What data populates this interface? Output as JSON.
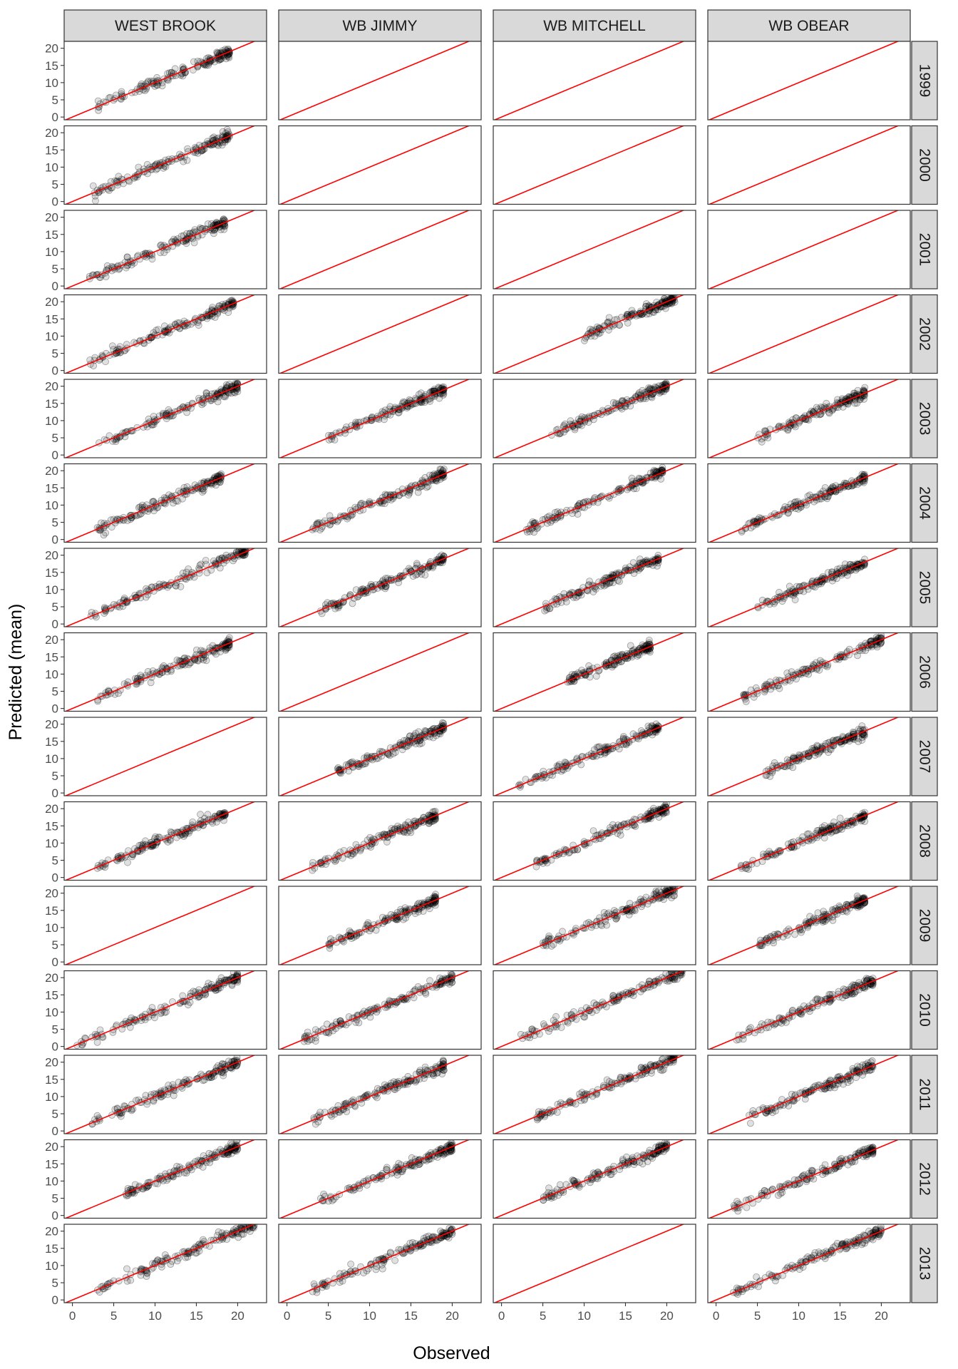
{
  "chart_data": {
    "type": "scatter",
    "xlabel": "Observed",
    "ylabel": "Predicted (mean)",
    "columns": [
      "WEST BROOK",
      "WB JIMMY",
      "WB MITCHELL",
      "WB OBEAR"
    ],
    "rows": [
      "1999",
      "2000",
      "2001",
      "2002",
      "2003",
      "2004",
      "2005",
      "2006",
      "2007",
      "2008",
      "2009",
      "2010",
      "2011",
      "2012",
      "2013"
    ],
    "xlim": [
      -1,
      23.5
    ],
    "ylim": [
      -0.8,
      22
    ],
    "x_ticks": [
      0,
      5,
      10,
      15,
      20
    ],
    "x_tick_labels": [
      "0",
      "5",
      "10",
      "15",
      "20"
    ],
    "y_ticks": [
      0,
      5,
      10,
      15,
      20
    ],
    "y_tick_labels": [
      "0",
      "5",
      "10",
      "15",
      "20"
    ],
    "reference_line": {
      "kind": "identity",
      "slope": 1,
      "intercept": 0,
      "color": "#ff0000"
    },
    "point_color": "#000000",
    "point_alpha": 0.12,
    "grid": false,
    "panels": [
      {
        "column": "WEST BROOK",
        "row": "1999",
        "has_data": true,
        "x_range": [
          3,
          19
        ]
      },
      {
        "column": "WB JIMMY",
        "row": "1999",
        "has_data": false
      },
      {
        "column": "WB MITCHELL",
        "row": "1999",
        "has_data": false
      },
      {
        "column": "WB OBEAR",
        "row": "1999",
        "has_data": false
      },
      {
        "column": "WEST BROOK",
        "row": "2000",
        "has_data": true,
        "x_range": [
          2.5,
          19
        ]
      },
      {
        "column": "WB JIMMY",
        "row": "2000",
        "has_data": false
      },
      {
        "column": "WB MITCHELL",
        "row": "2000",
        "has_data": false
      },
      {
        "column": "WB OBEAR",
        "row": "2000",
        "has_data": false
      },
      {
        "column": "WEST BROOK",
        "row": "2001",
        "has_data": true,
        "x_range": [
          2,
          18.5
        ]
      },
      {
        "column": "WB JIMMY",
        "row": "2001",
        "has_data": false
      },
      {
        "column": "WB MITCHELL",
        "row": "2001",
        "has_data": false
      },
      {
        "column": "WB OBEAR",
        "row": "2001",
        "has_data": false
      },
      {
        "column": "WEST BROOK",
        "row": "2002",
        "has_data": true,
        "x_range": [
          2,
          19.5
        ]
      },
      {
        "column": "WB JIMMY",
        "row": "2002",
        "has_data": false
      },
      {
        "column": "WB MITCHELL",
        "row": "2002",
        "has_data": true,
        "x_range": [
          10,
          21
        ]
      },
      {
        "column": "WB OBEAR",
        "row": "2002",
        "has_data": false
      },
      {
        "column": "WEST BROOK",
        "row": "2003",
        "has_data": true,
        "x_range": [
          3,
          20
        ]
      },
      {
        "column": "WB JIMMY",
        "row": "2003",
        "has_data": true,
        "x_range": [
          5,
          19
        ]
      },
      {
        "column": "WB MITCHELL",
        "row": "2003",
        "has_data": true,
        "x_range": [
          6,
          20
        ]
      },
      {
        "column": "WB OBEAR",
        "row": "2003",
        "has_data": true,
        "x_range": [
          5,
          18
        ]
      },
      {
        "column": "WEST BROOK",
        "row": "2004",
        "has_data": true,
        "x_range": [
          3,
          18
        ]
      },
      {
        "column": "WB JIMMY",
        "row": "2004",
        "has_data": true,
        "x_range": [
          3,
          19
        ]
      },
      {
        "column": "WB MITCHELL",
        "row": "2004",
        "has_data": true,
        "x_range": [
          3,
          19.5
        ]
      },
      {
        "column": "WB OBEAR",
        "row": "2004",
        "has_data": true,
        "x_range": [
          3,
          18
        ]
      },
      {
        "column": "WEST BROOK",
        "row": "2005",
        "has_data": true,
        "x_range": [
          2,
          21
        ]
      },
      {
        "column": "WB JIMMY",
        "row": "2005",
        "has_data": true,
        "x_range": [
          4,
          19
        ]
      },
      {
        "column": "WB MITCHELL",
        "row": "2005",
        "has_data": true,
        "x_range": [
          5,
          19
        ]
      },
      {
        "column": "WB OBEAR",
        "row": "2005",
        "has_data": true,
        "x_range": [
          5,
          18
        ]
      },
      {
        "column": "WEST BROOK",
        "row": "2006",
        "has_data": true,
        "x_range": [
          3,
          19
        ]
      },
      {
        "column": "WB JIMMY",
        "row": "2006",
        "has_data": false
      },
      {
        "column": "WB MITCHELL",
        "row": "2006",
        "has_data": true,
        "x_range": [
          8,
          18
        ]
      },
      {
        "column": "WB OBEAR",
        "row": "2006",
        "has_data": true,
        "x_range": [
          3,
          20
        ]
      },
      {
        "column": "WEST BROOK",
        "row": "2007",
        "has_data": false
      },
      {
        "column": "WB JIMMY",
        "row": "2007",
        "has_data": true,
        "x_range": [
          6,
          19
        ]
      },
      {
        "column": "WB MITCHELL",
        "row": "2007",
        "has_data": true,
        "x_range": [
          2,
          19
        ]
      },
      {
        "column": "WB OBEAR",
        "row": "2007",
        "has_data": true,
        "x_range": [
          6,
          18
        ]
      },
      {
        "column": "WEST BROOK",
        "row": "2008",
        "has_data": true,
        "x_range": [
          3,
          18.5
        ]
      },
      {
        "column": "WB JIMMY",
        "row": "2008",
        "has_data": true,
        "x_range": [
          3,
          18
        ]
      },
      {
        "column": "WB MITCHELL",
        "row": "2008",
        "has_data": true,
        "x_range": [
          4,
          20
        ]
      },
      {
        "column": "WB OBEAR",
        "row": "2008",
        "has_data": true,
        "x_range": [
          3,
          18
        ]
      },
      {
        "column": "WEST BROOK",
        "row": "2009",
        "has_data": false
      },
      {
        "column": "WB JIMMY",
        "row": "2009",
        "has_data": true,
        "x_range": [
          5,
          18
        ]
      },
      {
        "column": "WB MITCHELL",
        "row": "2009",
        "has_data": true,
        "x_range": [
          5,
          21
        ]
      },
      {
        "column": "WB OBEAR",
        "row": "2009",
        "has_data": true,
        "x_range": [
          5,
          18
        ]
      },
      {
        "column": "WEST BROOK",
        "row": "2010",
        "has_data": true,
        "x_range": [
          0.5,
          20
        ]
      },
      {
        "column": "WB JIMMY",
        "row": "2010",
        "has_data": true,
        "x_range": [
          2,
          20
        ]
      },
      {
        "column": "WB MITCHELL",
        "row": "2010",
        "has_data": true,
        "x_range": [
          2,
          22
        ]
      },
      {
        "column": "WB OBEAR",
        "row": "2010",
        "has_data": true,
        "x_range": [
          2,
          19
        ]
      },
      {
        "column": "WEST BROOK",
        "row": "2011",
        "has_data": true,
        "x_range": [
          2,
          20
        ]
      },
      {
        "column": "WB JIMMY",
        "row": "2011",
        "has_data": true,
        "x_range": [
          3,
          19
        ]
      },
      {
        "column": "WB MITCHELL",
        "row": "2011",
        "has_data": true,
        "x_range": [
          4,
          21
        ]
      },
      {
        "column": "WB OBEAR",
        "row": "2011",
        "has_data": true,
        "x_range": [
          4,
          19
        ]
      },
      {
        "column": "WEST BROOK",
        "row": "2012",
        "has_data": true,
        "x_range": [
          6,
          20
        ]
      },
      {
        "column": "WB JIMMY",
        "row": "2012",
        "has_data": true,
        "x_range": [
          4,
          20
        ]
      },
      {
        "column": "WB MITCHELL",
        "row": "2012",
        "has_data": true,
        "x_range": [
          5,
          20
        ]
      },
      {
        "column": "WB OBEAR",
        "row": "2012",
        "has_data": true,
        "x_range": [
          2,
          19
        ]
      },
      {
        "column": "WEST BROOK",
        "row": "2013",
        "has_data": true,
        "x_range": [
          3,
          22
        ]
      },
      {
        "column": "WB JIMMY",
        "row": "2013",
        "has_data": true,
        "x_range": [
          3,
          20
        ]
      },
      {
        "column": "WB MITCHELL",
        "row": "2013",
        "has_data": false
      },
      {
        "column": "WB OBEAR",
        "row": "2013",
        "has_data": true,
        "x_range": [
          2,
          20
        ]
      }
    ]
  }
}
